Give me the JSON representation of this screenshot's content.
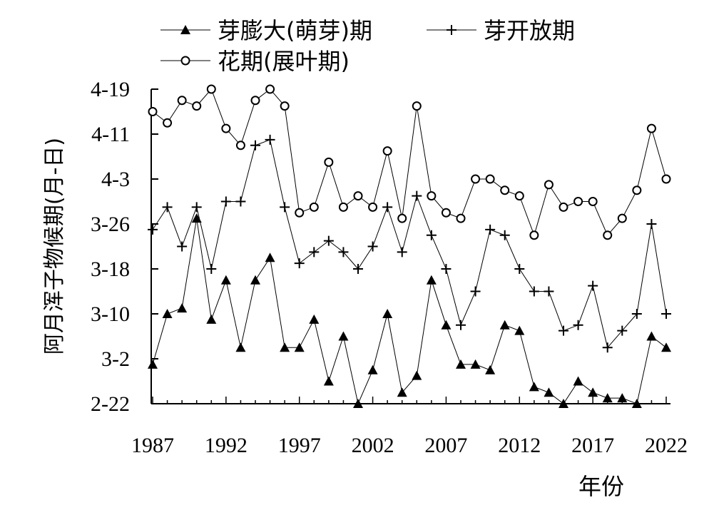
{
  "chart_data": {
    "type": "line",
    "title": "",
    "xlabel": "年份",
    "ylabel": "阿月浑子物候期(月-日)",
    "x": [
      1987,
      1988,
      1989,
      1990,
      1991,
      1992,
      1993,
      1994,
      1995,
      1996,
      1997,
      1998,
      1999,
      2000,
      2001,
      2002,
      2003,
      2004,
      2005,
      2006,
      2007,
      2008,
      2009,
      2010,
      2011,
      2012,
      2013,
      2014,
      2015,
      2016,
      2017,
      2018,
      2019,
      2020,
      2021,
      2022
    ],
    "xticks": [
      "1987",
      "1992",
      "1997",
      "2002",
      "2007",
      "2012",
      "2017",
      "2022"
    ],
    "xtick_values": [
      1987,
      1992,
      1997,
      2002,
      2007,
      2012,
      2017,
      2022
    ],
    "yticks": [
      "2-22",
      "3-2",
      "3-10",
      "3-18",
      "3-26",
      "4-3",
      "4-11",
      "4-19"
    ],
    "ytick_values": [
      "02-22",
      "03-02",
      "03-10",
      "03-18",
      "03-26",
      "04-03",
      "04-11",
      "04-19"
    ],
    "ylim": [
      "02-22",
      "04-19"
    ],
    "legend_position": "top",
    "grid": false,
    "series": [
      {
        "name": "芽膨大(萌芽)期",
        "marker": "filled-triangle",
        "values": [
          "03-01",
          "03-10",
          "03-11",
          "03-27",
          "03-09",
          "03-16",
          "03-04",
          "03-16",
          "03-20",
          "03-04",
          "03-04",
          "03-09",
          "02-26",
          "03-06",
          "02-22",
          "02-28",
          "03-10",
          "02-24",
          "02-27",
          "03-16",
          "03-08",
          "03-01",
          "03-01",
          "02-28",
          "03-08",
          "03-07",
          "02-25",
          "02-24",
          "02-22",
          "02-26",
          "02-24",
          "02-23",
          "02-23",
          "02-22",
          "03-06",
          "03-04"
        ]
      },
      {
        "name": "芽开放期",
        "marker": "plus",
        "values": [
          "03-25",
          "03-29",
          "03-22",
          "03-29",
          "03-18",
          "03-30",
          "03-30",
          "04-09",
          "04-10",
          "03-29",
          "03-19",
          "03-21",
          "03-23",
          "03-21",
          "03-18",
          "03-22",
          "03-29",
          "03-21",
          "03-31",
          "03-24",
          "03-18",
          "03-08",
          "03-14",
          "03-25",
          "03-24",
          "03-18",
          "03-14",
          "03-14",
          "03-07",
          "03-08",
          "03-15",
          "03-04",
          "03-07",
          "03-10",
          "03-26",
          "03-10"
        ]
      },
      {
        "name": "花期(展叶期)",
        "marker": "open-circle",
        "values": [
          "04-15",
          "04-13",
          "04-17",
          "04-16",
          "04-19",
          "04-12",
          "04-09",
          "04-17",
          "04-19",
          "04-16",
          "03-28",
          "03-29",
          "04-06",
          "03-29",
          "03-31",
          "03-29",
          "04-08",
          "03-27",
          "04-16",
          "03-31",
          "03-28",
          "03-27",
          "04-03",
          "04-03",
          "04-01",
          "03-31",
          "03-24",
          "04-02",
          "03-29",
          "03-30",
          "03-30",
          "03-24",
          "03-27",
          "04-01",
          "04-12",
          "04-03"
        ]
      }
    ]
  }
}
